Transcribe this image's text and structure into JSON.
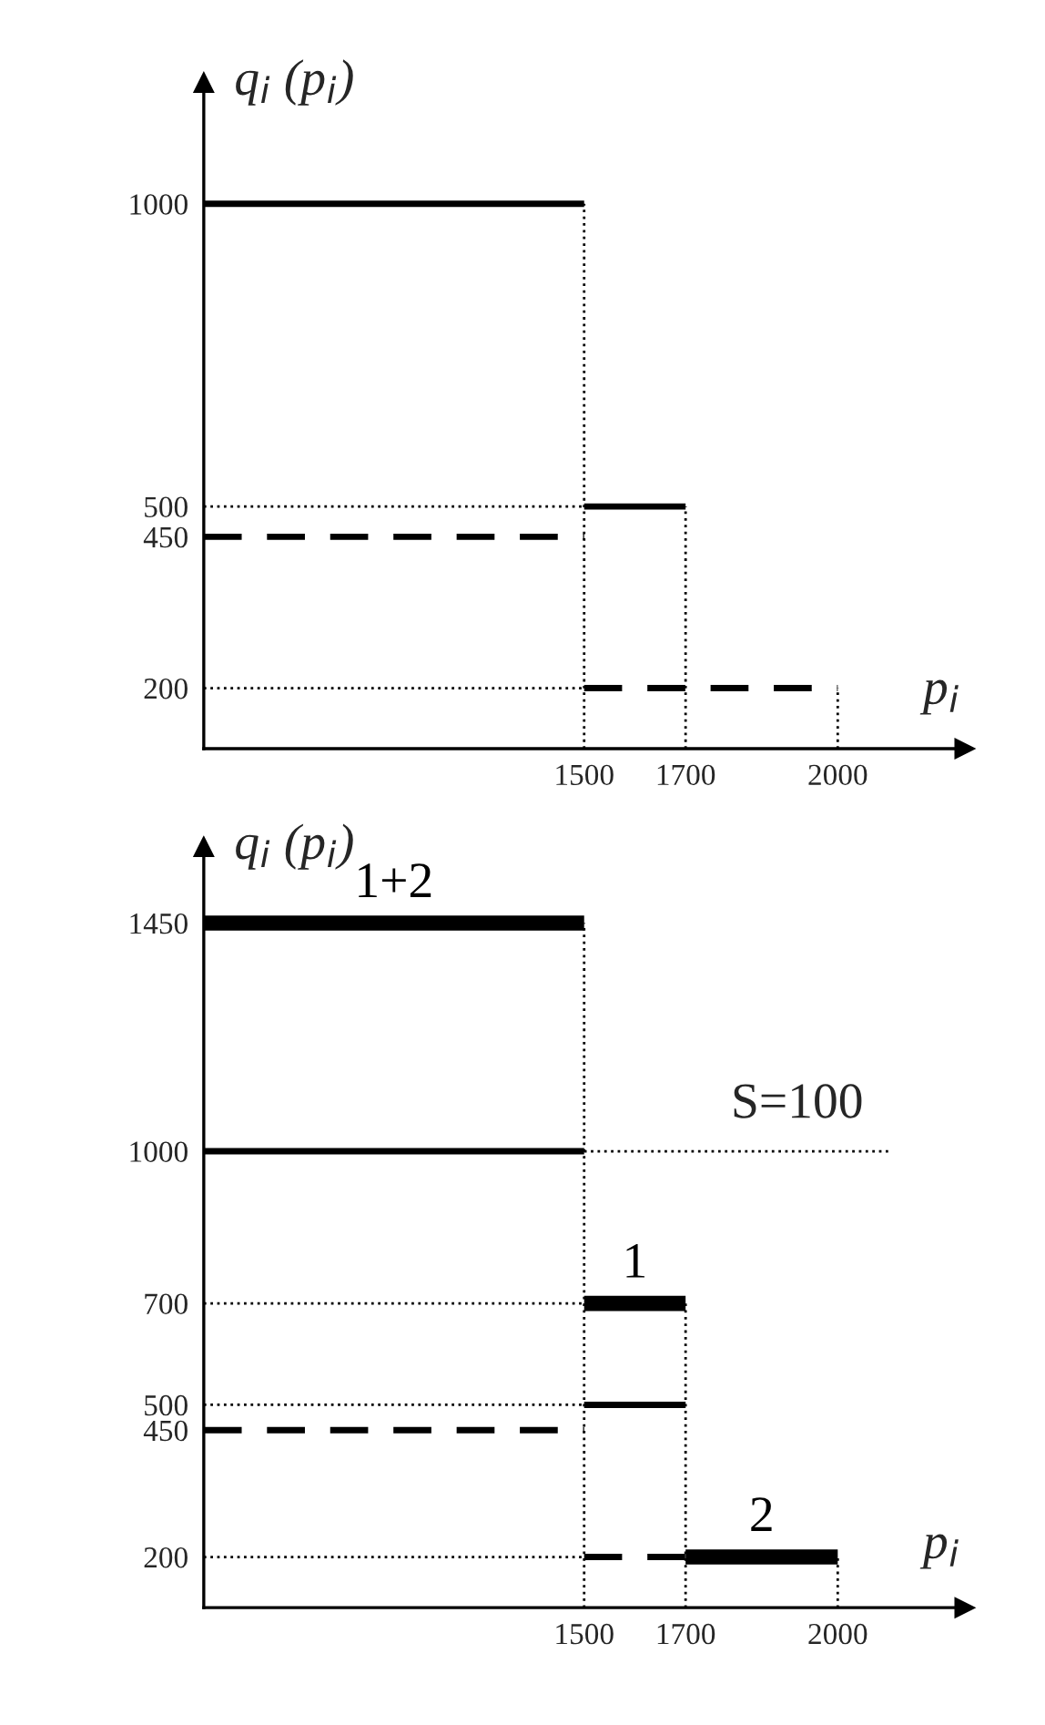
{
  "chart_data": [
    {
      "type": "line",
      "xlabel": "p$_{i}$",
      "ylabel": "q$_{i}$ (p$_{i}$)",
      "xlim": [
        750,
        2250
      ],
      "ylim": [
        100,
        1200
      ],
      "xticks": [
        1500,
        1700,
        2000
      ],
      "yticks": [
        200,
        450,
        500,
        1000
      ],
      "legend": false,
      "series": [
        {
          "color": "#000000",
          "line_style": "solid",
          "x": [
            750,
            1500
          ],
          "values": [
            1000,
            1000
          ]
        },
        {
          "color": "#000000",
          "line_style": "solid",
          "x": [
            1500,
            1700
          ],
          "values": [
            500,
            500
          ]
        },
        {
          "color": "#000000",
          "line_style": "dashed",
          "x": [
            750,
            1500
          ],
          "values": [
            450,
            450
          ]
        },
        {
          "color": "#000000",
          "line_style": "dashed",
          "x": [
            1500,
            2000
          ],
          "values": [
            200,
            200
          ]
        },
        {
          "color": "#000000",
          "line_style": "dotted",
          "x": [
            1500,
            1500
          ],
          "values": [
            100,
            1000
          ]
        },
        {
          "color": "#000000",
          "line_style": "dotted",
          "x": [
            1700,
            1700
          ],
          "values": [
            100,
            500
          ]
        },
        {
          "color": "#000000",
          "line_style": "dotted",
          "x": [
            2000,
            2000
          ],
          "values": [
            100,
            200
          ]
        },
        {
          "color": "#000000",
          "line_style": "dotted",
          "x": [
            750,
            1500
          ],
          "values": [
            500,
            500
          ]
        },
        {
          "color": "#000000",
          "line_style": "dotted",
          "x": [
            750,
            1500
          ],
          "values": [
            200,
            200
          ]
        }
      ]
    },
    {
      "type": "line",
      "xlabel": "p$_{i}$",
      "ylabel": "q$_{i}$ (p$_{i}$)",
      "xlim": [
        750,
        2250
      ],
      "ylim": [
        100,
        1600
      ],
      "xticks": [
        1500,
        1700,
        2000
      ],
      "yticks": [
        200,
        450,
        500,
        700,
        1000,
        1450
      ],
      "legend": false,
      "annotations": [
        "S=100"
      ],
      "series": [
        {
          "name": "1+2",
          "color": "#000000",
          "line_style": "solid",
          "x": [
            750,
            1500
          ],
          "values": [
            1450,
            1450
          ]
        },
        {
          "color": "#000000",
          "line_style": "solid",
          "x": [
            750,
            1500
          ],
          "values": [
            1000,
            1000
          ]
        },
        {
          "name": "1",
          "color": "#000000",
          "line_style": "solid",
          "x": [
            1500,
            1700
          ],
          "values": [
            700,
            700
          ]
        },
        {
          "color": "#000000",
          "line_style": "solid",
          "x": [
            1500,
            1700
          ],
          "values": [
            500,
            500
          ]
        },
        {
          "name": "2",
          "color": "#000000",
          "line_style": "solid",
          "x": [
            1700,
            2000
          ],
          "values": [
            200,
            200
          ]
        },
        {
          "color": "#000000",
          "line_style": "dashed",
          "x": [
            750,
            1500
          ],
          "values": [
            450,
            450
          ]
        },
        {
          "color": "#000000",
          "line_style": "dashed",
          "x": [
            1500,
            1700
          ],
          "values": [
            200,
            200
          ]
        },
        {
          "color": "#000000",
          "line_style": "dotted",
          "x": [
            1500,
            1500
          ],
          "values": [
            100,
            1450
          ]
        },
        {
          "color": "#000000",
          "line_style": "dotted",
          "x": [
            1700,
            1700
          ],
          "values": [
            100,
            700
          ]
        },
        {
          "color": "#000000",
          "line_style": "dotted",
          "x": [
            2000,
            2000
          ],
          "values": [
            100,
            200
          ]
        },
        {
          "color": "#000000",
          "line_style": "dotted",
          "x": [
            750,
            1500
          ],
          "values": [
            700,
            700
          ]
        },
        {
          "color": "#000000",
          "line_style": "dotted",
          "x": [
            750,
            1500
          ],
          "values": [
            500,
            500
          ]
        },
        {
          "color": "#000000",
          "line_style": "dotted",
          "x": [
            750,
            1500
          ],
          "values": [
            200,
            200
          ]
        },
        {
          "color": "#000000",
          "line_style": "dotted",
          "x": [
            1500,
            2100
          ],
          "values": [
            1000,
            1000
          ]
        }
      ]
    }
  ]
}
